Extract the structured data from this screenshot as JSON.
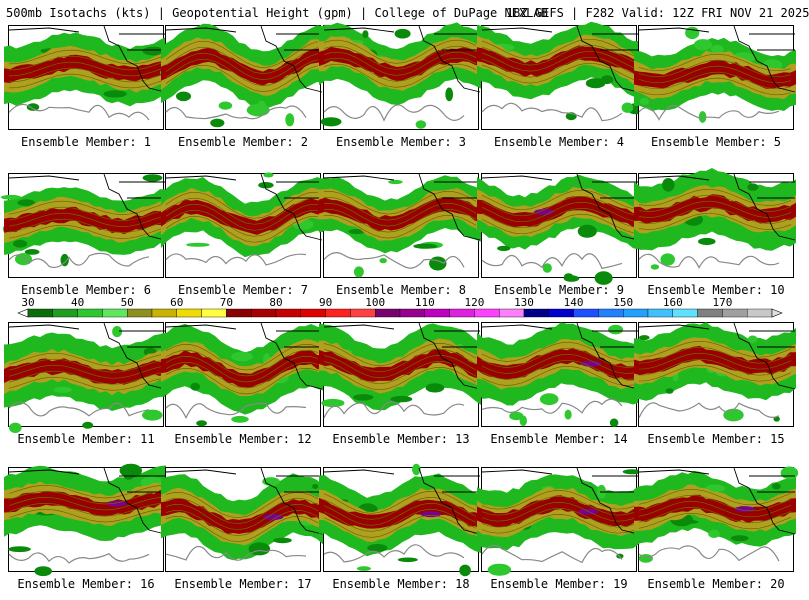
{
  "header": {
    "title": "500mb Isotachs (kts) | Geopotential Height (gpm) | College of DuPage NEXLAB",
    "run_info": "18Z GEFS | F282 Valid: 12Z FRI NOV 21 2025"
  },
  "panels": [
    {
      "label": "Ensemble Member: 1"
    },
    {
      "label": "Ensemble Member: 2"
    },
    {
      "label": "Ensemble Member: 3"
    },
    {
      "label": "Ensemble Member: 4"
    },
    {
      "label": "Ensemble Member: 5"
    },
    {
      "label": "Ensemble Member: 6"
    },
    {
      "label": "Ensemble Member: 7"
    },
    {
      "label": "Ensemble Member: 8"
    },
    {
      "label": "Ensemble Member: 9"
    },
    {
      "label": "Ensemble Member: 10"
    },
    {
      "label": "Ensemble Member: 11"
    },
    {
      "label": "Ensemble Member: 12"
    },
    {
      "label": "Ensemble Member: 13"
    },
    {
      "label": "Ensemble Member: 14"
    },
    {
      "label": "Ensemble Member: 15"
    },
    {
      "label": "Ensemble Member: 16"
    },
    {
      "label": "Ensemble Member: 17"
    },
    {
      "label": "Ensemble Member: 18"
    },
    {
      "label": "Ensemble Member: 19"
    },
    {
      "label": "Ensemble Member: 20"
    }
  ],
  "colorbar": {
    "labels": [
      "30",
      "40",
      "50",
      "60",
      "70",
      "80",
      "90",
      "100",
      "110",
      "120",
      "130",
      "140",
      "150",
      "160",
      "170"
    ],
    "colors": [
      "#0a6e0a",
      "#1f9e1f",
      "#2ec82e",
      "#5ee85e",
      "#8f8f20",
      "#c8b400",
      "#f0dc00",
      "#ffff40",
      "#8b0000",
      "#a80000",
      "#c80000",
      "#e00000",
      "#ff2020",
      "#ff4040",
      "#7a0070",
      "#9a0090",
      "#c000c0",
      "#e020e0",
      "#ff40ff",
      "#ff80ff",
      "#00008b",
      "#0000cd",
      "#1e50ff",
      "#2080ff",
      "#20a0ff",
      "#40c0ff",
      "#60e0ff",
      "#808080",
      "#a0a0a0",
      "#c8c8c8"
    ]
  }
}
